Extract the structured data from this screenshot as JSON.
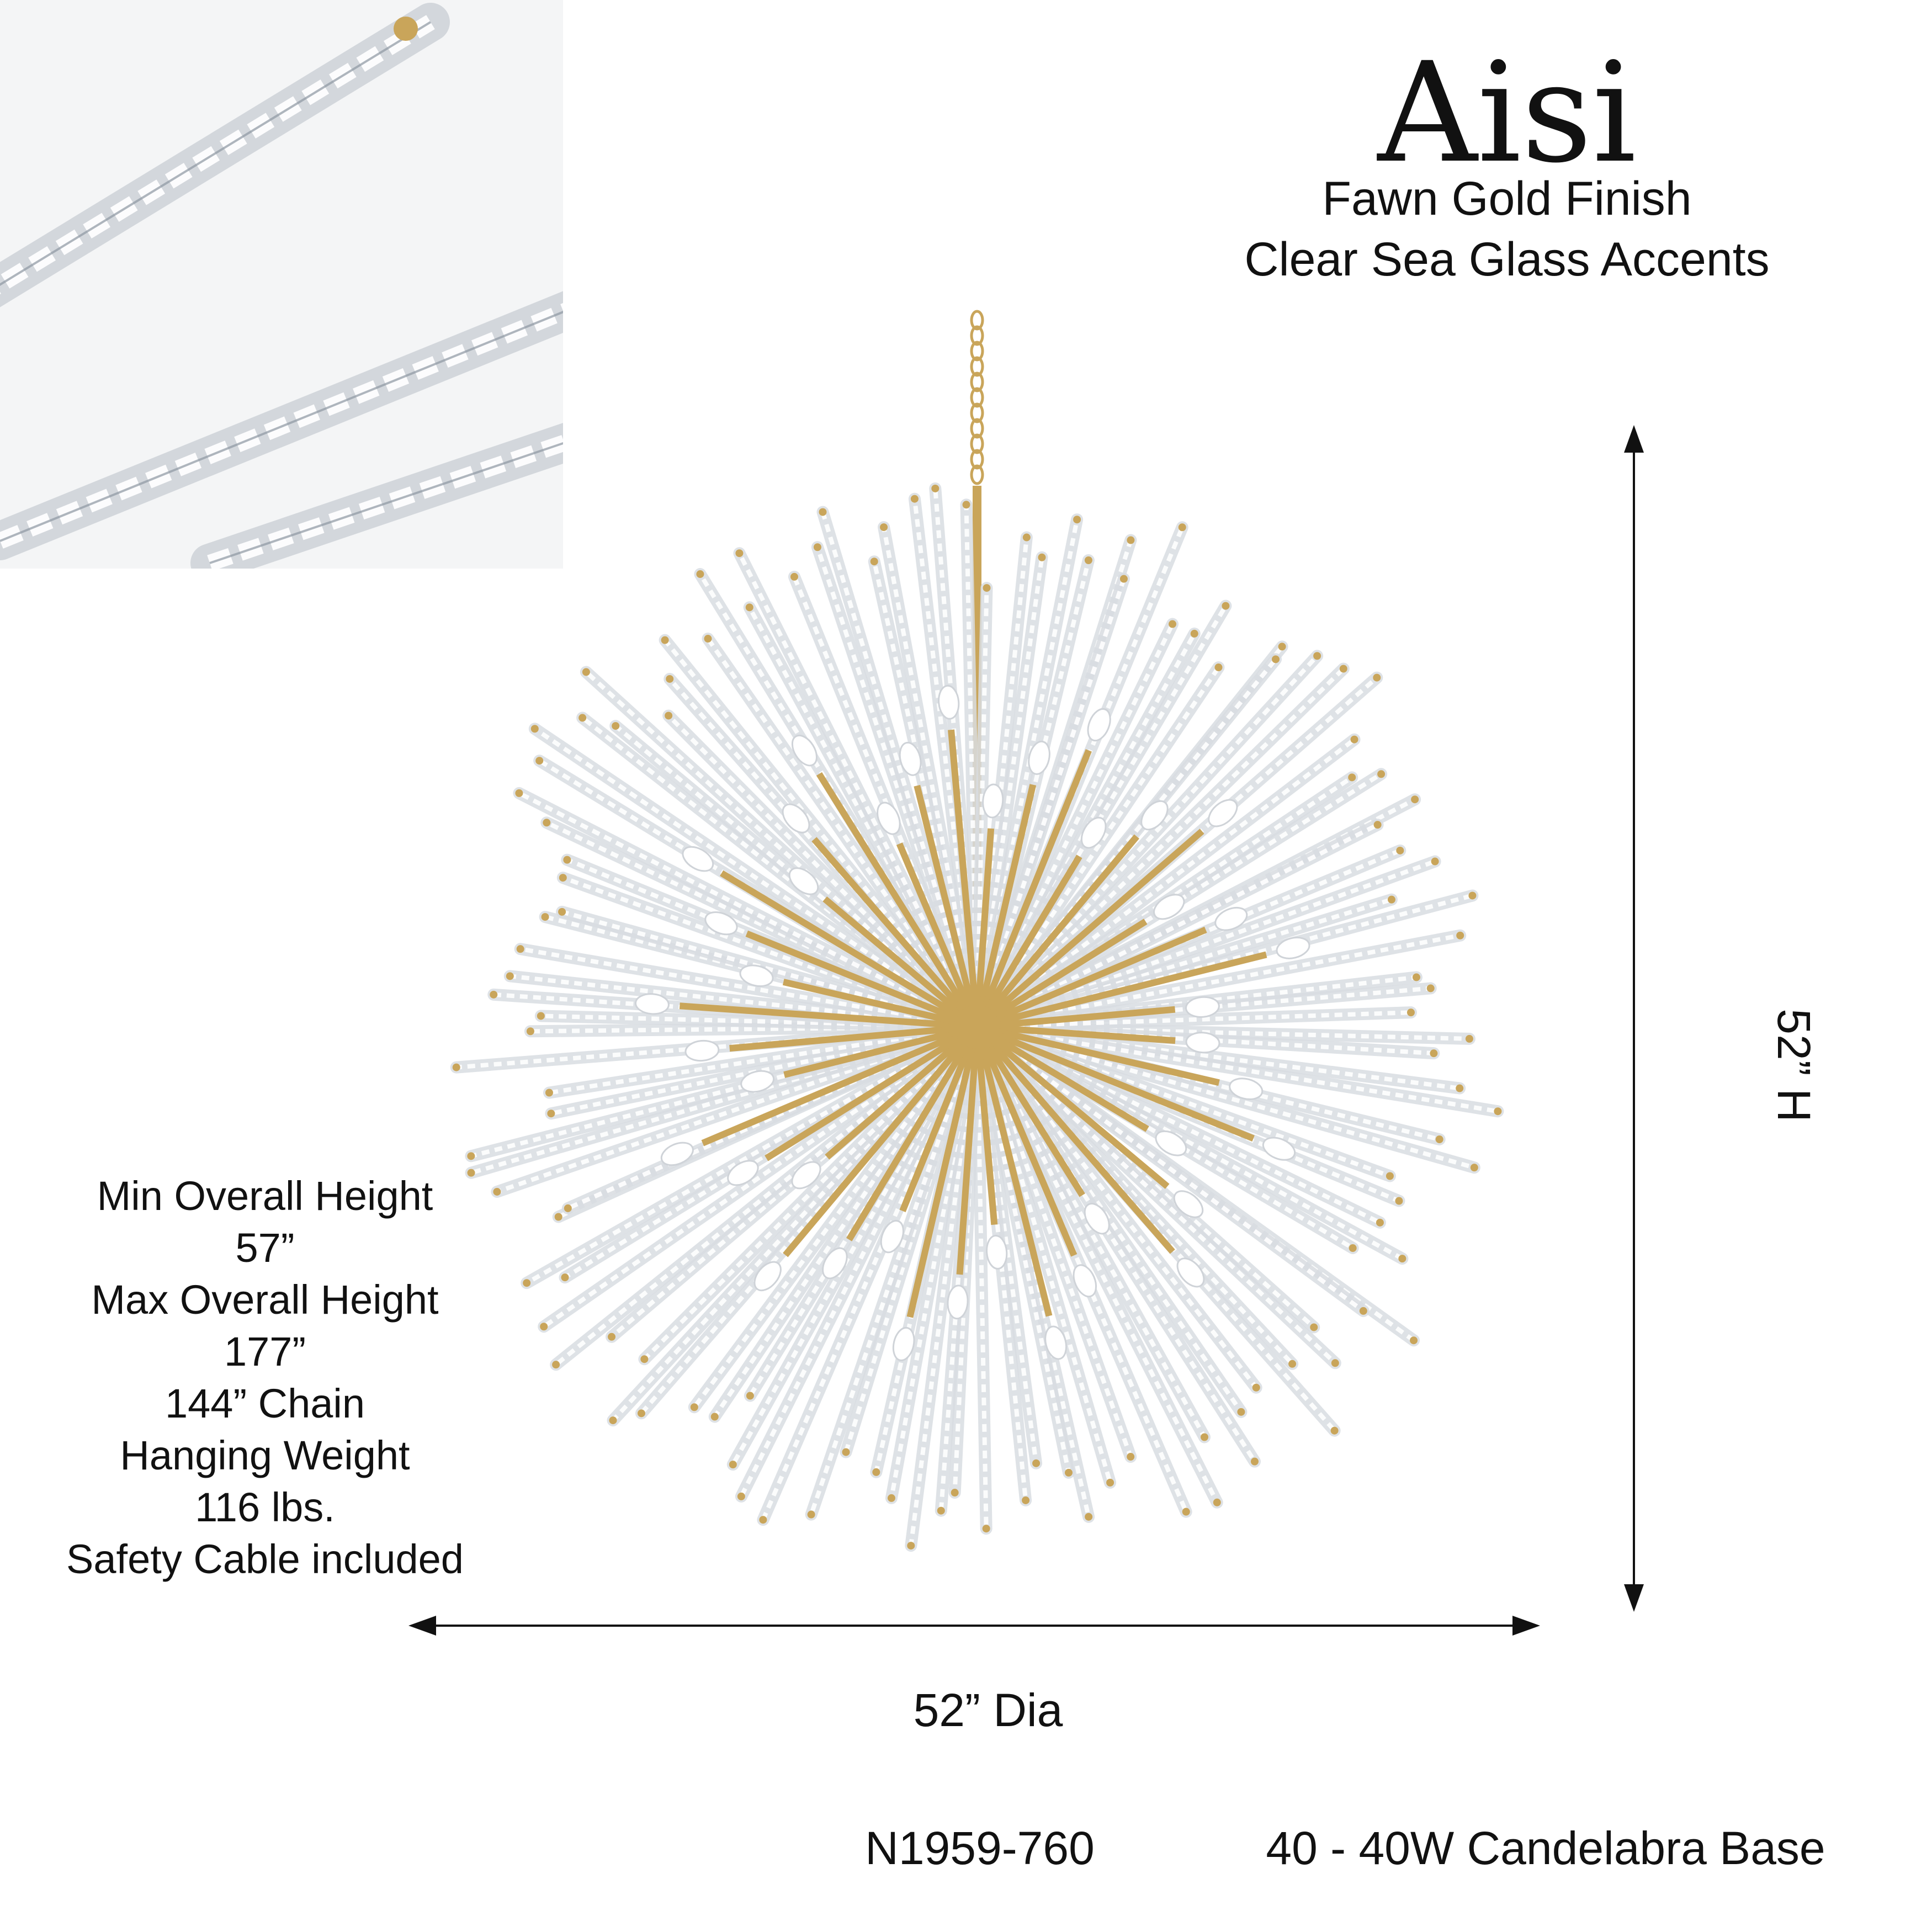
{
  "title": "Aisi",
  "finish": "Fawn Gold Finish",
  "accents": "Clear Sea Glass Accents",
  "specs": {
    "min_label": "Min Overall Height",
    "min_value": "57”",
    "max_label": "Max Overall Height",
    "max_value": "177”",
    "chain": "144” Chain",
    "weight_label": "Hanging Weight",
    "weight_value": "116 lbs.",
    "safety": "Safety Cable included"
  },
  "dimensions": {
    "width": "52” Dia",
    "height": "52” H"
  },
  "model": "N1959-760",
  "lamps": "40 - 40W Candelabra Base",
  "colors": {
    "gold": "#c9a55a",
    "glass": "#d9dde2",
    "text": "#111111"
  }
}
